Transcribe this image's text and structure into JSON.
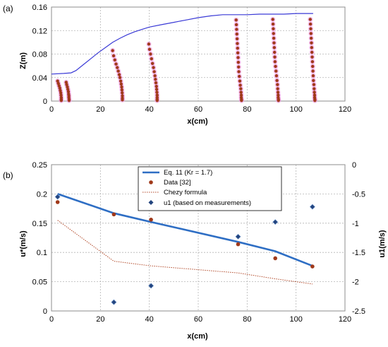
{
  "chart_data": [
    {
      "panel_label": "(a)",
      "type": "scatter",
      "xlabel": "x(cm)",
      "ylabel": "Z(m)",
      "xlim": [
        0,
        120
      ],
      "ylim": [
        0,
        0.16
      ],
      "xticks": [
        "0",
        "20",
        "40",
        "60",
        "80",
        "100",
        "120"
      ],
      "yticks": [
        "0",
        "0.04",
        "0.08",
        "0.12",
        "0.16"
      ],
      "grid": true,
      "series": [
        {
          "kind": "line",
          "color": "#3a3ad6",
          "x": [
            0,
            5,
            8,
            10,
            13,
            16,
            19,
            22,
            25,
            28,
            31,
            34,
            37,
            40,
            45,
            50,
            55,
            60,
            65,
            70,
            75,
            80,
            85,
            90,
            95,
            100,
            105,
            107
          ],
          "y": [
            0.046,
            0.047,
            0.048,
            0.052,
            0.062,
            0.072,
            0.082,
            0.091,
            0.1,
            0.107,
            0.113,
            0.118,
            0.122,
            0.126,
            0.13,
            0.134,
            0.138,
            0.142,
            0.145,
            0.147,
            0.147,
            0.147,
            0.148,
            0.148,
            0.148,
            0.149,
            0.149,
            0.149
          ]
        },
        {
          "kind": "profiles",
          "color": "#a0391a",
          "halo": "#f0a8e8",
          "profiles": [
            {
              "x": [
                2.5,
                2.8,
                3.1,
                3.4,
                3.6,
                3.8,
                3.9,
                4.0,
                4.0,
                4.0
              ],
              "y": [
                0.034,
                0.03,
                0.026,
                0.022,
                0.018,
                0.014,
                0.01,
                0.006,
                0.003,
                0.001
              ]
            },
            {
              "x": [
                6.0,
                6.2,
                6.5,
                6.7,
                6.9,
                7.0,
                7.1,
                7.1,
                7.2,
                7.2
              ],
              "y": [
                0.032,
                0.028,
                0.024,
                0.02,
                0.016,
                0.012,
                0.009,
                0.006,
                0.003,
                0.001
              ]
            },
            {
              "x": [
                25.0,
                25.4,
                25.9,
                26.4,
                26.9,
                27.3,
                27.7,
                28.0,
                28.3,
                28.5,
                28.7,
                28.8,
                28.9,
                29.0,
                29.0,
                29.0
              ],
              "y": [
                0.086,
                0.077,
                0.07,
                0.063,
                0.057,
                0.051,
                0.045,
                0.04,
                0.034,
                0.029,
                0.024,
                0.019,
                0.014,
                0.009,
                0.005,
                0.002
              ]
            },
            {
              "x": [
                39.8,
                40.1,
                40.5,
                40.9,
                41.3,
                41.7,
                42.0,
                42.3,
                42.5,
                42.7,
                42.9,
                43.0,
                43.1,
                43.2,
                43.2,
                43.2,
                43.2
              ],
              "y": [
                0.097,
                0.088,
                0.08,
                0.072,
                0.064,
                0.057,
                0.05,
                0.043,
                0.037,
                0.031,
                0.025,
                0.02,
                0.015,
                0.01,
                0.006,
                0.003,
                0.001
              ]
            },
            {
              "x": [
                75.5,
                75.6,
                75.7,
                75.8,
                75.9,
                76.0,
                76.1,
                76.2,
                76.3,
                76.4,
                76.5,
                76.6,
                76.8,
                77.0,
                77.2,
                77.4,
                77.5,
                77.6,
                77.6,
                77.7,
                77.7
              ],
              "y": [
                0.138,
                0.13,
                0.122,
                0.114,
                0.106,
                0.098,
                0.09,
                0.082,
                0.074,
                0.066,
                0.058,
                0.05,
                0.042,
                0.034,
                0.027,
                0.021,
                0.015,
                0.01,
                0.006,
                0.003,
                0.001
              ]
            },
            {
              "x": [
                90.5,
                90.6,
                90.7,
                90.8,
                90.9,
                91.0,
                91.1,
                91.2,
                91.3,
                91.4,
                91.6,
                91.8,
                92.0,
                92.2,
                92.4,
                92.5,
                92.6,
                92.7,
                92.7,
                92.8,
                92.8
              ],
              "y": [
                0.139,
                0.131,
                0.123,
                0.115,
                0.107,
                0.099,
                0.091,
                0.083,
                0.075,
                0.067,
                0.059,
                0.051,
                0.043,
                0.035,
                0.028,
                0.021,
                0.015,
                0.01,
                0.006,
                0.003,
                0.001
              ]
            },
            {
              "x": [
                105.8,
                105.9,
                106.0,
                106.1,
                106.2,
                106.3,
                106.4,
                106.5,
                106.6,
                106.7,
                106.8,
                106.9,
                107.0,
                107.1,
                107.3,
                107.4,
                107.5,
                107.6,
                107.6,
                107.7,
                107.7
              ],
              "y": [
                0.139,
                0.131,
                0.123,
                0.115,
                0.107,
                0.099,
                0.091,
                0.083,
                0.075,
                0.067,
                0.059,
                0.051,
                0.043,
                0.035,
                0.028,
                0.021,
                0.015,
                0.01,
                0.006,
                0.003,
                0.001
              ]
            }
          ]
        }
      ]
    },
    {
      "panel_label": "(b)",
      "type": "line",
      "xlabel": "x(cm)",
      "ylabel": "u*(m/s)",
      "y2label": "u1(m/s)",
      "xlim": [
        0,
        120
      ],
      "ylim": [
        0,
        0.25
      ],
      "y2lim": [
        -2.5,
        0
      ],
      "xticks": [
        "0",
        "20",
        "40",
        "60",
        "80",
        "100",
        "120"
      ],
      "yticks": [
        "0",
        "0.05",
        "0.1",
        "0.15",
        "0.2",
        "0.25"
      ],
      "y2ticks": [
        "-2.5",
        "-2",
        "-1.5",
        "-1",
        "-0.5",
        "0"
      ],
      "grid": true,
      "legend_placement": "top-center",
      "series": [
        {
          "name": "Eq. 11 (Kr = 1.7)",
          "kind": "line",
          "axis": "left",
          "color": "#2e6ec4",
          "x": [
            2.5,
            25.5,
            40.7,
            76.3,
            91.5,
            106.7
          ],
          "y": [
            0.2,
            0.167,
            0.152,
            0.118,
            0.102,
            0.077
          ]
        },
        {
          "name": "Data [32]",
          "kind": "marker-circle",
          "axis": "left",
          "color": "#a0391a",
          "x": [
            2.5,
            25.5,
            40.7,
            76.3,
            91.5,
            106.7
          ],
          "y": [
            0.186,
            0.165,
            0.156,
            0.114,
            0.09,
            0.076
          ]
        },
        {
          "name": "Chezy formula",
          "kind": "dotted-line",
          "axis": "left",
          "color": "#b24a2a",
          "x": [
            2.5,
            25.5,
            40.7,
            76.3,
            91.5,
            106.7
          ],
          "y": [
            0.155,
            0.085,
            0.077,
            0.065,
            0.055,
            0.046
          ]
        },
        {
          "name": "u1 (based on measurements)",
          "kind": "marker-diamond",
          "axis": "right",
          "color": "#23447e",
          "x": [
            2.5,
            25.5,
            40.7,
            76.3,
            91.5,
            106.7
          ],
          "y": [
            -0.55,
            -2.35,
            -2.07,
            -1.23,
            -0.98,
            -0.72
          ]
        }
      ]
    }
  ]
}
